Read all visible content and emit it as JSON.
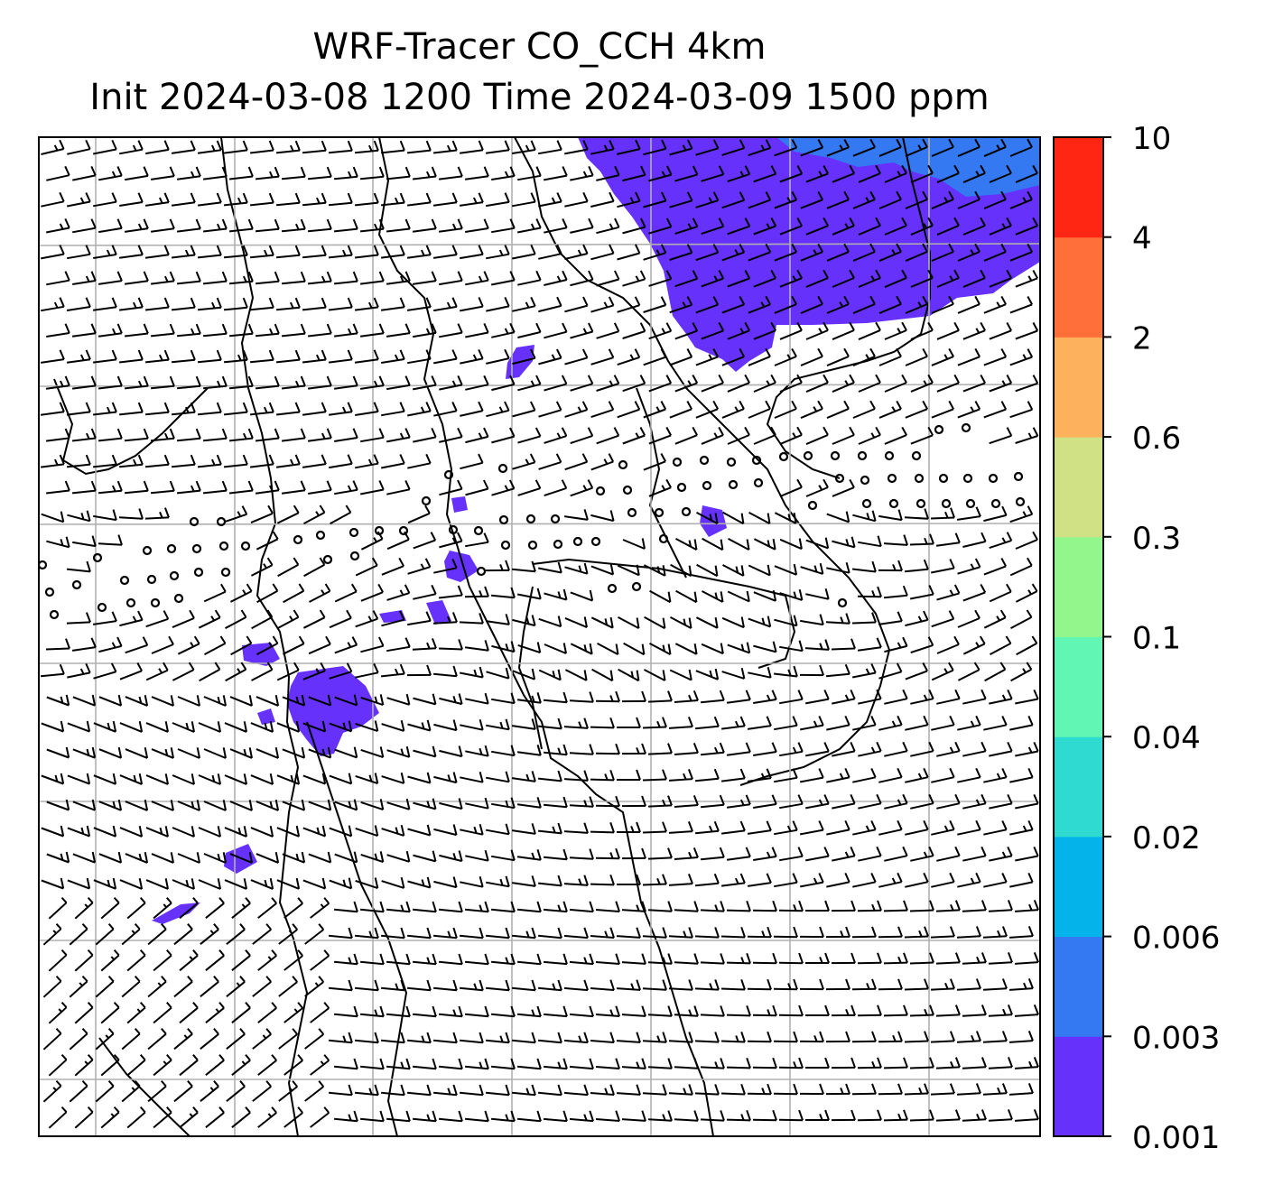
{
  "title_line1": "WRF-Tracer CO_CCH 4km",
  "title_line2": "Init 2024-03-08 1200 Time 2024-03-09 1500 ppm",
  "chart_data": {
    "type": "heatmap",
    "title": "WRF-Tracer CO_CCH 4km",
    "subtitle": "Init 2024-03-08 1200 Time 2024-03-09 1500 ppm",
    "unit": "ppm",
    "grid": true,
    "legend_position": "right colorbar",
    "colorbar": {
      "ticks": [
        "0.001",
        "0.003",
        "0.006",
        "0.02",
        "0.04",
        "0.1",
        "0.3",
        "0.6",
        "2",
        "4",
        "10"
      ],
      "colors": [
        "#6531fb",
        "#3479f1",
        "#04b3e9",
        "#2fdad1",
        "#61f6b4",
        "#93f68d",
        "#cfe184",
        "#feb15c",
        "#ff6f39",
        "#ff2714"
      ]
    },
    "overlays": [
      "wind barbs",
      "coastlines",
      "lat-lon gridlines"
    ]
  }
}
